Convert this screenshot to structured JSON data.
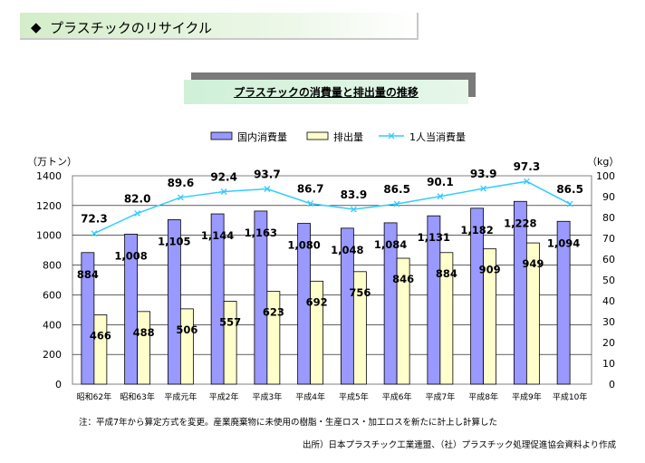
{
  "header": {
    "bullet": "◆",
    "title": "プラスチックのリサイクル"
  },
  "chart_data": {
    "type": "bar",
    "title": "プラスチックの消費量と排出量の推移",
    "categories": [
      "昭和62年",
      "昭和63年",
      "平成元年",
      "平成2年",
      "平成3年",
      "平成4年",
      "平成5年",
      "平成6年",
      "平成7年",
      "平成8年",
      "平成9年",
      "平成10年"
    ],
    "series": [
      {
        "name": "国内消費量",
        "type": "bar",
        "axis": "left",
        "color": "#9999ff",
        "values": [
          884,
          1008,
          1105,
          1144,
          1163,
          1080,
          1048,
          1084,
          1131,
          1182,
          1228,
          1094
        ],
        "labels": [
          "884",
          "1,008",
          "1,105",
          "1,144",
          "1,163",
          "1,080",
          "1,048",
          "1,084",
          "1,131",
          "1,182",
          "1,228",
          "1,094"
        ]
      },
      {
        "name": "排出量",
        "type": "bar",
        "axis": "left",
        "color": "#ffffcc",
        "values": [
          466,
          488,
          506,
          557,
          623,
          692,
          756,
          846,
          884,
          909,
          949,
          null
        ],
        "labels": [
          "466",
          "488",
          "506",
          "557",
          "623",
          "692",
          "756",
          "846",
          "884",
          "909",
          "949",
          ""
        ]
      },
      {
        "name": "1人当消費量",
        "type": "line",
        "axis": "right",
        "color": "#33ccff",
        "values": [
          72.3,
          82.0,
          89.6,
          92.4,
          93.7,
          86.7,
          83.9,
          86.5,
          90.1,
          93.9,
          97.3,
          86.5
        ],
        "labels": [
          "72.3",
          "82.0",
          "89.6",
          "92.4",
          "93.7",
          "86.7",
          "83.9",
          "86.5",
          "90.1",
          "93.9",
          "97.3",
          "86.5"
        ]
      }
    ],
    "y_left": {
      "unit": "（万トン）",
      "range": [
        0,
        1400
      ],
      "ticks": [
        "0",
        "200",
        "400",
        "600",
        "800",
        "1000",
        "1200",
        "1400"
      ]
    },
    "y_right": {
      "unit": "（kg）",
      "range": [
        0,
        100
      ],
      "ticks": [
        "0",
        "10",
        "20",
        "30",
        "40",
        "50",
        "60",
        "70",
        "80",
        "90",
        "100"
      ]
    },
    "grid": true,
    "legend_position": "top"
  },
  "footnote": "注：平成7年から算定方式を変更。産業廃棄物に未使用の樹脂・生産ロス・加工ロスを新たに計上し計算した",
  "source": "出所）日本プラスチック工業連盟、（社）プラスチック処理促進協会資料より作成"
}
